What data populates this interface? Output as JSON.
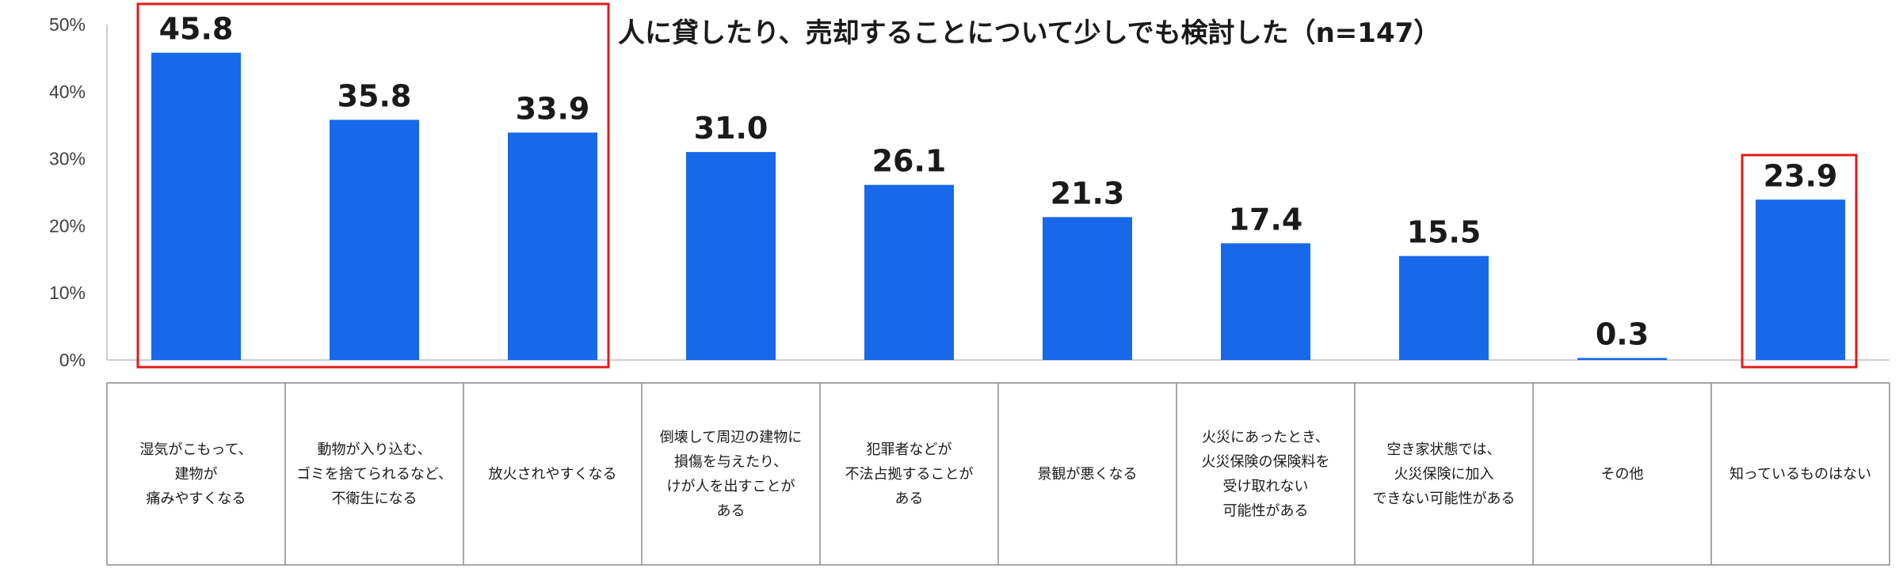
{
  "chart_data": {
    "type": "bar",
    "title": "人に貸したり、売却することについて少しでも検討した（n=147）",
    "ylim": [
      0,
      50
    ],
    "yticks": [
      "0%",
      "10%",
      "20%",
      "30%",
      "40%",
      "50%"
    ],
    "grid": false,
    "categories": [
      [
        "湿気がこもって、",
        "建物が",
        "痛みやすくなる"
      ],
      [
        "動物が入り込む、",
        "ゴミを捨てられるなど、",
        "不衛生になる"
      ],
      [
        "放火されやすくなる"
      ],
      [
        "倒壊して周辺の建物に",
        "損傷を与えたり、",
        "けが人を出すことが",
        "ある"
      ],
      [
        "犯罪者などが",
        "不法占拠することが",
        "ある"
      ],
      [
        "景観が悪くなる"
      ],
      [
        "火災にあったとき、",
        "火災保険の保険料を",
        "受け取れない",
        "可能性がある"
      ],
      [
        "空き家状態では、",
        "火災保険に加入",
        "できない可能性がある"
      ],
      [
        "その他"
      ],
      [
        "知っているものはない"
      ]
    ],
    "values": [
      45.8,
      35.8,
      33.9,
      31.0,
      26.1,
      21.3,
      17.4,
      15.5,
      0.3,
      23.9
    ],
    "value_labels": [
      "45.8",
      "35.8",
      "33.9",
      "31.0",
      "26.1",
      "21.3",
      "17.4",
      "15.5",
      "0.3",
      "23.9"
    ],
    "bar_color": "#1769e9",
    "highlight_color": "#e11b1b",
    "highlight_groups": [
      [
        0,
        2
      ],
      [
        9,
        9
      ]
    ]
  }
}
